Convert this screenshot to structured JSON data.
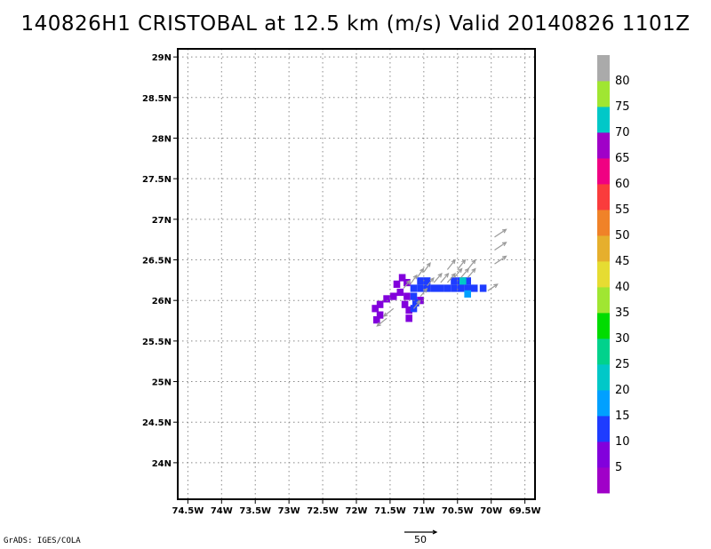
{
  "title": "140826H1 CRISTOBAL at 12.5 km (m/s) Valid 20140826 1101Z",
  "credit": "GrADS: IGES/COLA",
  "reference_vector": {
    "label": "50",
    "value": 50
  },
  "map": {
    "lon_range": [
      -74.65,
      -69.35
    ],
    "lat_range": [
      23.55,
      29.1
    ],
    "x_ticks": [
      {
        "lon": -74.5,
        "label": "74.5W"
      },
      {
        "lon": -74.0,
        "label": "74W"
      },
      {
        "lon": -73.5,
        "label": "73.5W"
      },
      {
        "lon": -73.0,
        "label": "73W"
      },
      {
        "lon": -72.5,
        "label": "72.5W"
      },
      {
        "lon": -72.0,
        "label": "72W"
      },
      {
        "lon": -71.5,
        "label": "71.5W"
      },
      {
        "lon": -71.0,
        "label": "71W"
      },
      {
        "lon": -70.5,
        "label": "70.5W"
      },
      {
        "lon": -70.0,
        "label": "70W"
      },
      {
        "lon": -69.5,
        "label": "69.5W"
      }
    ],
    "y_ticks": [
      {
        "lat": 24.0,
        "label": "24N"
      },
      {
        "lat": 24.5,
        "label": "24.5N"
      },
      {
        "lat": 25.0,
        "label": "25N"
      },
      {
        "lat": 25.5,
        "label": "25.5N"
      },
      {
        "lat": 26.0,
        "label": "26N"
      },
      {
        "lat": 26.5,
        "label": "26.5N"
      },
      {
        "lat": 27.0,
        "label": "27N"
      },
      {
        "lat": 27.5,
        "label": "27.5N"
      },
      {
        "lat": 28.0,
        "label": "28N"
      },
      {
        "lat": 28.5,
        "label": "28.5N"
      },
      {
        "lat": 29.0,
        "label": "29N"
      }
    ],
    "grid": true,
    "grid_style": "dotted"
  },
  "chart_data": {
    "type": "heatmap",
    "units": "m/s",
    "colorbar": {
      "colors": [
        "#a000c8",
        "#8200dc",
        "#1e3cff",
        "#00a0ff",
        "#00c8c8",
        "#00d28c",
        "#00dc00",
        "#a0e632",
        "#e6dc32",
        "#e6af2d",
        "#f08228",
        "#fa3c3c",
        "#f00082",
        "#a000c8",
        "#00c8c8",
        "#a0e632",
        "#aaaaaa"
      ],
      "labels": [
        "5",
        "10",
        "15",
        "20",
        "25",
        "30",
        "35",
        "40",
        "45",
        "50",
        "55",
        "60",
        "65",
        "70",
        "75",
        "80"
      ]
    },
    "cells": [
      {
        "lon": -71.4,
        "lat": 26.2,
        "v": 5
      },
      {
        "lon": -71.32,
        "lat": 26.28,
        "v": 5
      },
      {
        "lon": -71.25,
        "lat": 26.22,
        "v": 5
      },
      {
        "lon": -71.35,
        "lat": 26.1,
        "v": 5
      },
      {
        "lon": -71.45,
        "lat": 26.05,
        "v": 5
      },
      {
        "lon": -71.55,
        "lat": 26.02,
        "v": 5
      },
      {
        "lon": -71.65,
        "lat": 25.95,
        "v": 5
      },
      {
        "lon": -71.72,
        "lat": 25.9,
        "v": 5
      },
      {
        "lon": -71.65,
        "lat": 25.82,
        "v": 5
      },
      {
        "lon": -71.7,
        "lat": 25.76,
        "v": 5
      },
      {
        "lon": -71.25,
        "lat": 26.05,
        "v": 5
      },
      {
        "lon": -71.28,
        "lat": 25.95,
        "v": 5
      },
      {
        "lon": -71.22,
        "lat": 25.88,
        "v": 5
      },
      {
        "lon": -71.22,
        "lat": 25.78,
        "v": 5
      },
      {
        "lon": -71.05,
        "lat": 26.0,
        "v": 5
      },
      {
        "lon": -71.15,
        "lat": 26.15,
        "v": 10
      },
      {
        "lon": -71.05,
        "lat": 26.15,
        "v": 10
      },
      {
        "lon": -70.95,
        "lat": 26.15,
        "v": 10
      },
      {
        "lon": -70.85,
        "lat": 26.15,
        "v": 10
      },
      {
        "lon": -70.75,
        "lat": 26.15,
        "v": 10
      },
      {
        "lon": -70.65,
        "lat": 26.15,
        "v": 10
      },
      {
        "lon": -70.55,
        "lat": 26.15,
        "v": 10
      },
      {
        "lon": -70.45,
        "lat": 26.15,
        "v": 10
      },
      {
        "lon": -70.35,
        "lat": 26.15,
        "v": 10
      },
      {
        "lon": -70.25,
        "lat": 26.15,
        "v": 10
      },
      {
        "lon": -70.12,
        "lat": 26.15,
        "v": 10
      },
      {
        "lon": -71.05,
        "lat": 26.24,
        "v": 10
      },
      {
        "lon": -70.95,
        "lat": 26.24,
        "v": 10
      },
      {
        "lon": -70.55,
        "lat": 26.24,
        "v": 10
      },
      {
        "lon": -70.45,
        "lat": 26.24,
        "v": 10
      },
      {
        "lon": -70.35,
        "lat": 26.24,
        "v": 10
      },
      {
        "lon": -71.15,
        "lat": 26.05,
        "v": 10
      },
      {
        "lon": -71.12,
        "lat": 25.97,
        "v": 10
      },
      {
        "lon": -71.15,
        "lat": 25.9,
        "v": 10
      },
      {
        "lon": -70.42,
        "lat": 26.24,
        "v": 20
      },
      {
        "lon": -70.35,
        "lat": 26.08,
        "v": 15
      }
    ],
    "vectors": [
      {
        "lon": -71.45,
        "lat": 25.9,
        "u": -15,
        "v": -12
      },
      {
        "lon": -71.55,
        "lat": 25.78,
        "u": -15,
        "v": -12
      },
      {
        "lon": -71.3,
        "lat": 26.15,
        "u": 10,
        "v": 12
      },
      {
        "lon": -71.2,
        "lat": 26.2,
        "u": 10,
        "v": 14
      },
      {
        "lon": -71.1,
        "lat": 26.28,
        "u": 10,
        "v": 14
      },
      {
        "lon": -71.0,
        "lat": 26.35,
        "u": 10,
        "v": 14
      },
      {
        "lon": -71.15,
        "lat": 25.9,
        "u": 10,
        "v": 12
      },
      {
        "lon": -71.05,
        "lat": 26.05,
        "u": 10,
        "v": 12
      },
      {
        "lon": -70.95,
        "lat": 26.18,
        "u": 10,
        "v": 12
      },
      {
        "lon": -70.85,
        "lat": 26.22,
        "u": 12,
        "v": 14
      },
      {
        "lon": -70.75,
        "lat": 26.22,
        "u": 12,
        "v": 14
      },
      {
        "lon": -70.65,
        "lat": 26.22,
        "u": 12,
        "v": 14
      },
      {
        "lon": -70.55,
        "lat": 26.28,
        "u": 12,
        "v": 14
      },
      {
        "lon": -70.45,
        "lat": 26.28,
        "u": 12,
        "v": 14
      },
      {
        "lon": -70.35,
        "lat": 26.28,
        "u": 12,
        "v": 14
      },
      {
        "lon": -70.65,
        "lat": 26.38,
        "u": 12,
        "v": 15
      },
      {
        "lon": -70.5,
        "lat": 26.38,
        "u": 12,
        "v": 15
      },
      {
        "lon": -70.35,
        "lat": 26.38,
        "u": 12,
        "v": 15
      },
      {
        "lon": -70.05,
        "lat": 26.12,
        "u": 15,
        "v": 10
      },
      {
        "lon": -69.95,
        "lat": 26.45,
        "u": 18,
        "v": 12
      },
      {
        "lon": -69.95,
        "lat": 26.62,
        "u": 18,
        "v": 12
      },
      {
        "lon": -69.95,
        "lat": 26.78,
        "u": 18,
        "v": 12
      }
    ]
  }
}
